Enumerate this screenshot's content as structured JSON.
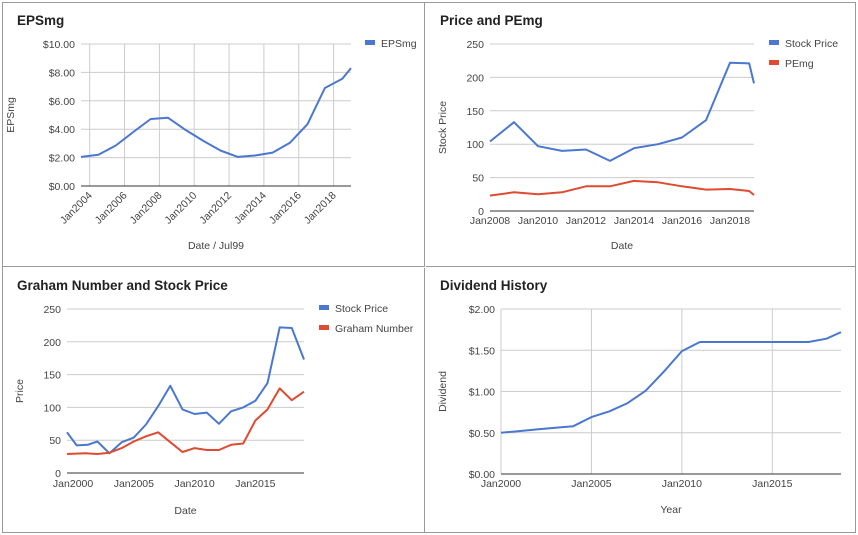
{
  "colors": {
    "blue": "#4a77cf",
    "red": "#dd4b31",
    "grid": "#cccccc",
    "axis": "#333333",
    "text": "#444444"
  },
  "chart_data": [
    {
      "type": "line",
      "title": "EPSmg",
      "xlabel": "Date / Jul99",
      "ylabel": "EPSmg",
      "xlim": [
        2003.5,
        2019.0
      ],
      "ylim": [
        0,
        10
      ],
      "yticks": [
        0,
        2,
        4,
        6,
        8,
        10
      ],
      "ytick_labels": [
        "$0.00",
        "$2.00",
        "$4.00",
        "$6.00",
        "$8.00",
        "$10.00"
      ],
      "xticks": [
        2004,
        2006,
        2008,
        2010,
        2012,
        2014,
        2016,
        2018
      ],
      "xtick_labels": [
        "Jan2004",
        "Jan2006",
        "Jan2008",
        "Jan2010",
        "Jan2012",
        "Jan2014",
        "Jan2016",
        "Jan2018"
      ],
      "x_rotated": true,
      "vgrid": true,
      "legend": "top-right",
      "series": [
        {
          "name": "EPSmg",
          "color": "#4a77cf",
          "x": [
            2003.5,
            2004.5,
            2005.5,
            2006.5,
            2007.5,
            2008.5,
            2009.5,
            2010.5,
            2011.5,
            2012.5,
            2013.5,
            2014.5,
            2015.5,
            2016.5,
            2017.5,
            2018.5,
            2019.0
          ],
          "y": [
            2.05,
            2.2,
            2.85,
            3.8,
            4.72,
            4.8,
            3.95,
            3.2,
            2.5,
            2.05,
            2.15,
            2.35,
            3.05,
            4.35,
            6.9,
            7.55,
            8.3
          ]
        }
      ]
    },
    {
      "type": "line",
      "title": "Price and PEmg",
      "xlabel": "Date",
      "ylabel": "Stock Price",
      "xlim": [
        2008.0,
        2019.0
      ],
      "ylim": [
        0,
        250
      ],
      "yticks": [
        0,
        50,
        100,
        150,
        200,
        250
      ],
      "ytick_labels": [
        "0",
        "50",
        "100",
        "150",
        "200",
        "250"
      ],
      "xticks": [
        2008,
        2010,
        2012,
        2014,
        2016,
        2018
      ],
      "xtick_labels": [
        "Jan2008",
        "Jan2010",
        "Jan2012",
        "Jan2014",
        "Jan2016",
        "Jan2018"
      ],
      "x_rotated": false,
      "vgrid": false,
      "legend": "top-right",
      "series": [
        {
          "name": "Stock Price",
          "color": "#4a77cf",
          "x": [
            2008.0,
            2009.0,
            2010.0,
            2011.0,
            2012.0,
            2013.0,
            2014.0,
            2015.0,
            2016.0,
            2017.0,
            2018.0,
            2018.8,
            2019.0
          ],
          "y": [
            104,
            133,
            97,
            90,
            92,
            75,
            94,
            100,
            110,
            136,
            222,
            221,
            191
          ]
        },
        {
          "name": "PEmg",
          "color": "#dd4b31",
          "x": [
            2008.0,
            2009.0,
            2010.0,
            2011.0,
            2012.0,
            2013.0,
            2014.0,
            2015.0,
            2016.0,
            2017.0,
            2018.0,
            2018.8,
            2019.0
          ],
          "y": [
            23,
            28,
            25,
            28,
            37,
            37,
            45,
            43,
            37,
            32,
            33,
            30,
            24
          ]
        }
      ]
    },
    {
      "type": "line",
      "title": "Graham Number and Stock Price",
      "xlabel": "Date",
      "ylabel": "Price",
      "xlim": [
        1999.5,
        2019.0
      ],
      "ylim": [
        0,
        250
      ],
      "yticks": [
        0,
        50,
        100,
        150,
        200,
        250
      ],
      "ytick_labels": [
        "0",
        "50",
        "100",
        "150",
        "200",
        "250"
      ],
      "xticks": [
        2000,
        2005,
        2010,
        2015
      ],
      "xtick_labels": [
        "Jan2000",
        "Jan2005",
        "Jan2010",
        "Jan2015"
      ],
      "x_rotated": false,
      "vgrid": false,
      "legend": "top-right",
      "series": [
        {
          "name": "Stock Price",
          "color": "#4a77cf",
          "x": [
            1999.5,
            2000.3,
            2001.2,
            2002.0,
            2003.0,
            2004.0,
            2005.0,
            2006.0,
            2007.0,
            2008.0,
            2009.0,
            2010.0,
            2011.0,
            2012.0,
            2013.0,
            2014.0,
            2015.0,
            2016.0,
            2017.0,
            2018.0,
            2019.0
          ],
          "y": [
            62,
            42,
            43,
            48,
            30,
            47,
            54,
            74,
            102,
            133,
            97,
            90,
            92,
            75,
            94,
            100,
            110,
            137,
            222,
            221,
            173
          ]
        },
        {
          "name": "Graham Number",
          "color": "#dd4b31",
          "x": [
            1999.5,
            2001.0,
            2002.0,
            2003.0,
            2004.0,
            2005.0,
            2006.0,
            2007.0,
            2008.0,
            2009.0,
            2010.0,
            2011.0,
            2012.0,
            2013.0,
            2014.0,
            2015.0,
            2016.0,
            2017.0,
            2018.0,
            2019.0
          ],
          "y": [
            29,
            30,
            29,
            31,
            38,
            48,
            56,
            62,
            47,
            32,
            38,
            35,
            35,
            43,
            45,
            80,
            97,
            129,
            111,
            124
          ]
        }
      ]
    },
    {
      "type": "line",
      "title": "Dividend History",
      "xlabel": "Year",
      "ylabel": "Dividend",
      "xlim": [
        2000.0,
        2018.8
      ],
      "ylim": [
        0,
        2
      ],
      "yticks": [
        0,
        0.5,
        1,
        1.5,
        2
      ],
      "ytick_labels": [
        "$0.00",
        "$0.50",
        "$1.00",
        "$1.50",
        "$2.00"
      ],
      "xticks": [
        2000,
        2005,
        2010,
        2015
      ],
      "xtick_labels": [
        "Jan2000",
        "Jan2005",
        "Jan2010",
        "Jan2015"
      ],
      "x_rotated": false,
      "vgrid": true,
      "legend": "none",
      "series": [
        {
          "name": "",
          "color": "#4a77cf",
          "x": [
            2000.0,
            2001.0,
            2002.0,
            2003.0,
            2004.0,
            2005.0,
            2006.0,
            2007.0,
            2008.0,
            2009.0,
            2010.0,
            2011.0,
            2012.0,
            2013.0,
            2014.0,
            2015.0,
            2016.0,
            2017.0,
            2018.0,
            2018.8
          ],
          "y": [
            0.5,
            0.52,
            0.54,
            0.56,
            0.58,
            0.69,
            0.76,
            0.86,
            1.01,
            1.24,
            1.49,
            1.6,
            1.6,
            1.6,
            1.6,
            1.6,
            1.6,
            1.6,
            1.64,
            1.72
          ]
        }
      ]
    }
  ]
}
